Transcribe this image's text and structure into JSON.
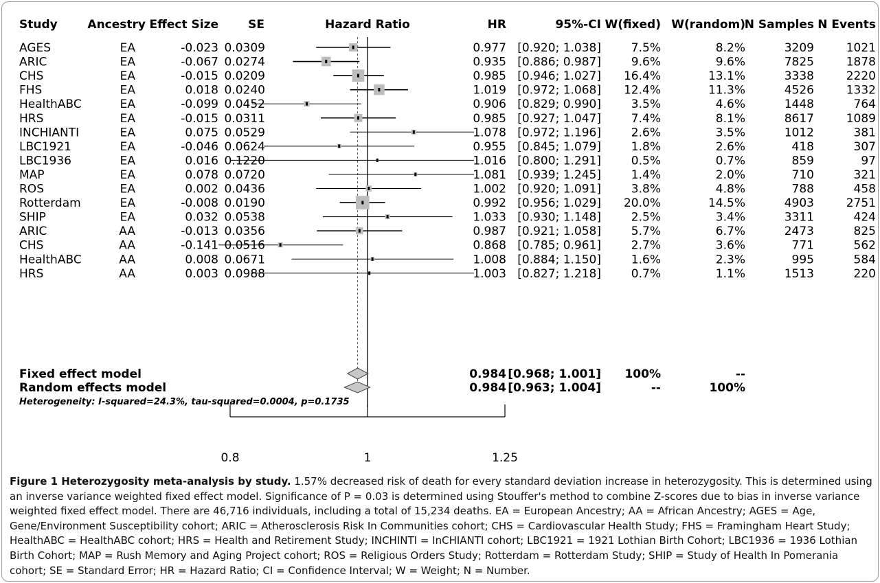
{
  "chart_data": {
    "type": "forest",
    "columns": [
      "Study",
      "Ancestry",
      "Effect Size",
      "SE",
      "Hazard Ratio",
      "HR",
      "95%-CI",
      "W(fixed)",
      "W(random)",
      "N Samples",
      "N Events"
    ],
    "studies": [
      {
        "study": "AGES",
        "ancestry": "EA",
        "effect": "-0.023",
        "se": "0.0309",
        "hr": 0.977,
        "lo": 0.92,
        "hi": 1.038,
        "hr_text": "0.977",
        "ci_text": "[0.920; 1.038]",
        "w_fixed": "7.5%",
        "w_random": "8.2%",
        "n": "3209",
        "events": "1021"
      },
      {
        "study": "ARIC",
        "ancestry": "EA",
        "effect": "-0.067",
        "se": "0.0274",
        "hr": 0.935,
        "lo": 0.886,
        "hi": 0.987,
        "hr_text": "0.935",
        "ci_text": "[0.886; 0.987]",
        "w_fixed": "9.6%",
        "w_random": "9.6%",
        "n": "7825",
        "events": "1878"
      },
      {
        "study": "CHS",
        "ancestry": "EA",
        "effect": "-0.015",
        "se": "0.0209",
        "hr": 0.985,
        "lo": 0.946,
        "hi": 1.027,
        "hr_text": "0.985",
        "ci_text": "[0.946; 1.027]",
        "w_fixed": "16.4%",
        "w_random": "13.1%",
        "n": "3338",
        "events": "2220"
      },
      {
        "study": "FHS",
        "ancestry": "EA",
        "effect": "0.018",
        "se": "0.0240",
        "hr": 1.019,
        "lo": 0.972,
        "hi": 1.068,
        "hr_text": "1.019",
        "ci_text": "[0.972; 1.068]",
        "w_fixed": "12.4%",
        "w_random": "11.3%",
        "n": "4526",
        "events": "1332"
      },
      {
        "study": "HealthABC",
        "ancestry": "EA",
        "effect": "-0.099",
        "se": "0.0452",
        "hr": 0.906,
        "lo": 0.829,
        "hi": 0.99,
        "hr_text": "0.906",
        "ci_text": "[0.829; 0.990]",
        "w_fixed": "3.5%",
        "w_random": "4.6%",
        "n": "1448",
        "events": "764"
      },
      {
        "study": "HRS",
        "ancestry": "EA",
        "effect": "-0.015",
        "se": "0.0311",
        "hr": 0.985,
        "lo": 0.927,
        "hi": 1.047,
        "hr_text": "0.985",
        "ci_text": "[0.927; 1.047]",
        "w_fixed": "7.4%",
        "w_random": "8.1%",
        "n": "8617",
        "events": "1089"
      },
      {
        "study": "INCHIANTI",
        "ancestry": "EA",
        "effect": "0.075",
        "se": "0.0529",
        "hr": 1.078,
        "lo": 0.972,
        "hi": 1.196,
        "hr_text": "1.078",
        "ci_text": "[0.972; 1.196]",
        "w_fixed": "2.6%",
        "w_random": "3.5%",
        "n": "1012",
        "events": "381"
      },
      {
        "study": "LBC1921",
        "ancestry": "EA",
        "effect": "-0.046",
        "se": "0.0624",
        "hr": 0.955,
        "lo": 0.845,
        "hi": 1.079,
        "hr_text": "0.955",
        "ci_text": "[0.845; 1.079]",
        "w_fixed": "1.8%",
        "w_random": "2.6%",
        "n": "418",
        "events": "307"
      },
      {
        "study": "LBC1936",
        "ancestry": "EA",
        "effect": "0.016",
        "se": "0.1220",
        "hr": 1.016,
        "lo": 0.8,
        "hi": 1.291,
        "hr_text": "1.016",
        "ci_text": "[0.800; 1.291]",
        "w_fixed": "0.5%",
        "w_random": "0.7%",
        "n": "859",
        "events": "97"
      },
      {
        "study": "MAP",
        "ancestry": "EA",
        "effect": "0.078",
        "se": "0.0720",
        "hr": 1.081,
        "lo": 0.939,
        "hi": 1.245,
        "hr_text": "1.081",
        "ci_text": "[0.939; 1.245]",
        "w_fixed": "1.4%",
        "w_random": "2.0%",
        "n": "710",
        "events": "321"
      },
      {
        "study": "ROS",
        "ancestry": "EA",
        "effect": "0.002",
        "se": "0.0436",
        "hr": 1.002,
        "lo": 0.92,
        "hi": 1.091,
        "hr_text": "1.002",
        "ci_text": "[0.920; 1.091]",
        "w_fixed": "3.8%",
        "w_random": "4.8%",
        "n": "788",
        "events": "458"
      },
      {
        "study": "Rotterdam",
        "ancestry": "EA",
        "effect": "-0.008",
        "se": "0.0190",
        "hr": 0.992,
        "lo": 0.956,
        "hi": 1.029,
        "hr_text": "0.992",
        "ci_text": "[0.956; 1.029]",
        "w_fixed": "20.0%",
        "w_random": "14.5%",
        "n": "4903",
        "events": "2751"
      },
      {
        "study": "SHIP",
        "ancestry": "EA",
        "effect": "0.032",
        "se": "0.0538",
        "hr": 1.033,
        "lo": 0.93,
        "hi": 1.148,
        "hr_text": "1.033",
        "ci_text": "[0.930; 1.148]",
        "w_fixed": "2.5%",
        "w_random": "3.4%",
        "n": "3311",
        "events": "424"
      },
      {
        "study": "ARIC",
        "ancestry": "AA",
        "effect": "-0.013",
        "se": "0.0356",
        "hr": 0.987,
        "lo": 0.921,
        "hi": 1.058,
        "hr_text": "0.987",
        "ci_text": "[0.921; 1.058]",
        "w_fixed": "5.7%",
        "w_random": "6.7%",
        "n": "2473",
        "events": "825"
      },
      {
        "study": "CHS",
        "ancestry": "AA",
        "effect": "-0.141",
        "se": "0.0516",
        "hr": 0.868,
        "lo": 0.785,
        "hi": 0.961,
        "hr_text": "0.868",
        "ci_text": "[0.785; 0.961]",
        "w_fixed": "2.7%",
        "w_random": "3.6%",
        "n": "771",
        "events": "562"
      },
      {
        "study": "HealthABC",
        "ancestry": "AA",
        "effect": "0.008",
        "se": "0.0671",
        "hr": 1.008,
        "lo": 0.884,
        "hi": 1.15,
        "hr_text": "1.008",
        "ci_text": "[0.884; 1.150]",
        "w_fixed": "1.6%",
        "w_random": "2.3%",
        "n": "995",
        "events": "584"
      },
      {
        "study": "HRS",
        "ancestry": "AA",
        "effect": "0.003",
        "se": "0.0988",
        "hr": 1.003,
        "lo": 0.827,
        "hi": 1.218,
        "hr_text": "1.003",
        "ci_text": "[0.827; 1.218]",
        "w_fixed": "0.7%",
        "w_random": "1.1%",
        "n": "1513",
        "events": "220"
      }
    ],
    "models": [
      {
        "label": "Fixed effect model",
        "hr": 0.984,
        "lo": 0.968,
        "hi": 1.001,
        "hr_text": "0.984",
        "ci_text": "[0.968; 1.001]",
        "w_fixed": "100%",
        "w_random": "--"
      },
      {
        "label": "Random effects model",
        "hr": 0.984,
        "lo": 0.963,
        "hi": 1.004,
        "hr_text": "0.984",
        "ci_text": "[0.963; 1.004]",
        "w_fixed": "--",
        "w_random": "100%"
      }
    ],
    "heterogeneity": "Heterogeneity: I-squared=24.3%, tau-squared=0.0004, p=0.1735",
    "x_axis": {
      "scale": "log",
      "ticks": [
        0.8,
        1,
        1.25
      ],
      "tick_labels": [
        "0.8",
        "1",
        "1.25"
      ],
      "reference_line": 1
    },
    "colors": {
      "box": "#bdbdbd",
      "diamond": "#c8c8c8",
      "line": "#000000",
      "grid_dashed": "#555555"
    }
  },
  "caption": {
    "title": "Figure 1 Heterozygosity meta-analysis by study.",
    "body": " 1.57% decreased risk of death for every standard deviation increase in heterozygosity. This is determined using an inverse variance weighted fixed effect model. Significance of P = 0.03 is determined using Stouffer's method to combine Z-scores due to bias in inverse variance weighted fixed effect model. There are 46,716 individuals, including a total of 15,234 deaths. EA = European Ancestry; AA = African Ancestry; AGES = Age, Gene/Environment Susceptibility cohort; ARIC = Atherosclerosis Risk In Communities cohort; CHS = Cardiovascular Health Study; FHS = Framingham Heart Study; HealthABC = HealthABC cohort; HRS = Health and Retirement Study; INCHINTI = InCHIANTI cohort; LBC1921 = 1921 Lothian Birth Cohort; LBC1936 = 1936 Lothian Birth Cohort; MAP = Rush Memory and Aging Project cohort; ROS = Religious Orders Study; Rotterdam = Rotterdam Study; SHIP = Study of Health In Pomerania cohort; SE = Standard Error; HR = Hazard Ratio; CI = Confidence Interval; W = Weight; N = Number."
  }
}
